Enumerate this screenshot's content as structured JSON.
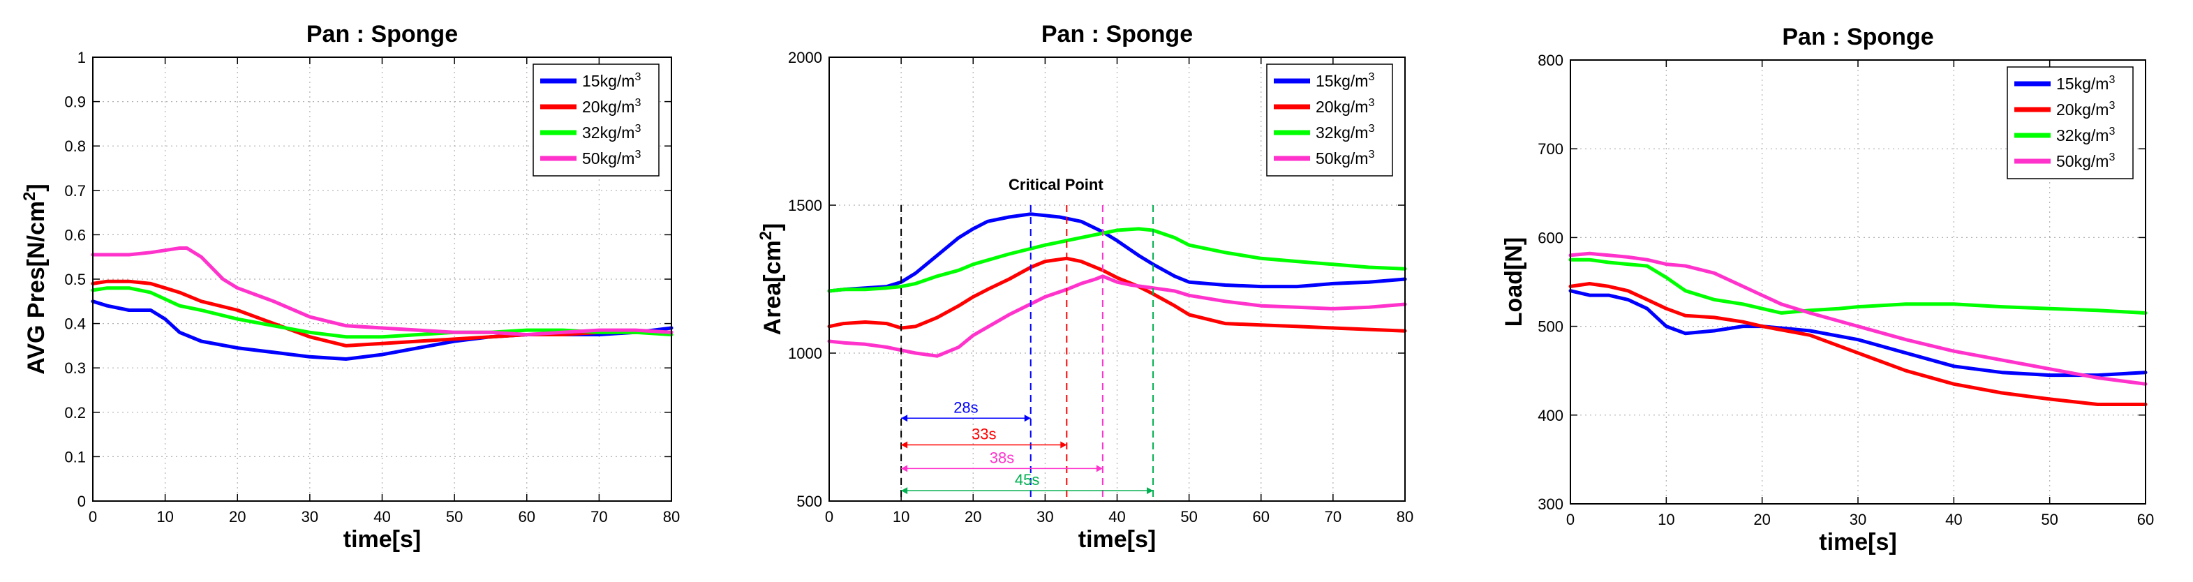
{
  "chart_data": [
    {
      "type": "line",
      "title": "Pan : Sponge",
      "xlabel": "time[s]",
      "ylabel": "AVG Pres[N/cm²]",
      "xlim": [
        0,
        80
      ],
      "ylim": [
        0,
        1
      ],
      "xticks": [
        0,
        10,
        20,
        30,
        40,
        50,
        60,
        70,
        80
      ],
      "yticks": [
        0,
        0.1,
        0.2,
        0.3,
        0.4,
        0.5,
        0.6,
        0.7,
        0.8,
        0.9,
        1
      ],
      "ytick_labels": [
        "0",
        "0.1",
        "0.2",
        "0.3",
        "0.4",
        "0.5",
        "0.6",
        "0.7",
        "0.8",
        "0.9",
        "1"
      ],
      "grid": true,
      "legend_position": "top-right",
      "series": [
        {
          "name": "15kg/m³",
          "color": "#0000ff",
          "x": [
            0,
            2,
            5,
            8,
            10,
            12,
            15,
            20,
            25,
            30,
            35,
            40,
            45,
            50,
            55,
            60,
            65,
            70,
            75,
            80
          ],
          "y": [
            0.45,
            0.44,
            0.43,
            0.43,
            0.41,
            0.38,
            0.36,
            0.345,
            0.335,
            0.325,
            0.32,
            0.33,
            0.345,
            0.36,
            0.37,
            0.375,
            0.375,
            0.375,
            0.38,
            0.39
          ]
        },
        {
          "name": "20kg/m³",
          "color": "#ff0000",
          "x": [
            0,
            2,
            5,
            8,
            10,
            12,
            15,
            20,
            25,
            30,
            35,
            40,
            45,
            50,
            55,
            60,
            65,
            70,
            75,
            80
          ],
          "y": [
            0.49,
            0.495,
            0.495,
            0.49,
            0.48,
            0.47,
            0.45,
            0.43,
            0.4,
            0.37,
            0.35,
            0.355,
            0.36,
            0.365,
            0.37,
            0.375,
            0.375,
            0.38,
            0.38,
            0.38
          ]
        },
        {
          "name": "32kg/m³",
          "color": "#00ff00",
          "x": [
            0,
            2,
            5,
            8,
            10,
            12,
            15,
            20,
            25,
            30,
            35,
            40,
            45,
            50,
            55,
            60,
            65,
            70,
            75,
            80
          ],
          "y": [
            0.475,
            0.48,
            0.48,
            0.47,
            0.455,
            0.44,
            0.43,
            0.41,
            0.395,
            0.38,
            0.37,
            0.37,
            0.375,
            0.38,
            0.38,
            0.385,
            0.385,
            0.38,
            0.38,
            0.375
          ]
        },
        {
          "name": "50kg/m³",
          "color": "#ff33cc",
          "x": [
            0,
            2,
            5,
            8,
            10,
            12,
            13,
            15,
            18,
            20,
            25,
            30,
            35,
            40,
            45,
            50,
            55,
            60,
            65,
            70,
            75,
            80
          ],
          "y": [
            0.555,
            0.555,
            0.555,
            0.56,
            0.565,
            0.57,
            0.57,
            0.55,
            0.5,
            0.48,
            0.45,
            0.415,
            0.395,
            0.39,
            0.385,
            0.38,
            0.38,
            0.375,
            0.38,
            0.385,
            0.385,
            0.38
          ]
        }
      ]
    },
    {
      "type": "line",
      "title": "Pan : Sponge",
      "xlabel": "time[s]",
      "ylabel": "Area[cm²]",
      "xlim": [
        0,
        80
      ],
      "ylim": [
        500,
        2000
      ],
      "xticks": [
        0,
        10,
        20,
        30,
        40,
        50,
        60,
        70,
        80
      ],
      "yticks": [
        500,
        1000,
        1500,
        2000
      ],
      "ytick_labels": [
        "500",
        "1000",
        "1500",
        "2000"
      ],
      "grid": true,
      "legend_position": "top-right",
      "series": [
        {
          "name": "15kg/m³",
          "color": "#0000ff",
          "x": [
            0,
            2,
            5,
            8,
            10,
            12,
            15,
            18,
            20,
            22,
            25,
            28,
            30,
            32,
            35,
            38,
            40,
            43,
            45,
            48,
            50,
            55,
            60,
            65,
            70,
            75,
            80
          ],
          "y": [
            1210,
            1215,
            1220,
            1225,
            1240,
            1270,
            1330,
            1390,
            1420,
            1445,
            1460,
            1470,
            1465,
            1460,
            1445,
            1410,
            1380,
            1330,
            1300,
            1260,
            1240,
            1230,
            1225,
            1225,
            1235,
            1240,
            1250
          ]
        },
        {
          "name": "20kg/m³",
          "color": "#ff0000",
          "x": [
            0,
            2,
            5,
            8,
            10,
            12,
            15,
            18,
            20,
            22,
            25,
            28,
            30,
            33,
            35,
            38,
            40,
            43,
            45,
            48,
            50,
            55,
            60,
            65,
            70,
            75,
            80
          ],
          "y": [
            1090,
            1100,
            1105,
            1100,
            1085,
            1090,
            1120,
            1160,
            1190,
            1215,
            1250,
            1290,
            1310,
            1320,
            1310,
            1280,
            1255,
            1225,
            1200,
            1160,
            1130,
            1100,
            1095,
            1090,
            1085,
            1080,
            1075
          ]
        },
        {
          "name": "32kg/m³",
          "color": "#00ff00",
          "x": [
            0,
            2,
            5,
            8,
            10,
            12,
            15,
            18,
            20,
            25,
            30,
            35,
            40,
            43,
            45,
            48,
            50,
            55,
            60,
            65,
            70,
            75,
            80
          ],
          "y": [
            1210,
            1215,
            1215,
            1220,
            1225,
            1235,
            1260,
            1280,
            1300,
            1335,
            1365,
            1390,
            1415,
            1420,
            1415,
            1390,
            1365,
            1340,
            1320,
            1310,
            1300,
            1290,
            1285
          ]
        },
        {
          "name": "50kg/m³",
          "color": "#ff33cc",
          "x": [
            0,
            2,
            5,
            8,
            10,
            12,
            15,
            18,
            20,
            25,
            30,
            33,
            35,
            37,
            38,
            40,
            42,
            45,
            48,
            50,
            55,
            60,
            65,
            70,
            75,
            80
          ],
          "y": [
            1040,
            1035,
            1030,
            1020,
            1010,
            1000,
            990,
            1020,
            1060,
            1130,
            1190,
            1215,
            1235,
            1250,
            1260,
            1240,
            1230,
            1220,
            1210,
            1195,
            1175,
            1160,
            1155,
            1150,
            1155,
            1165
          ]
        }
      ],
      "annotations": {
        "critical_point_label": "Critical Point",
        "start_time": 10,
        "critical_lines": [
          {
            "time": 28,
            "color": "#0000ff"
          },
          {
            "time": 33,
            "color": "#ff0000"
          },
          {
            "time": 38,
            "color": "#ff33cc"
          },
          {
            "time": 45,
            "color": "#00b050"
          }
        ],
        "intervals": [
          {
            "label": "28s",
            "end": 28,
            "color": "#0000ff",
            "y": 780
          },
          {
            "label": "33s",
            "end": 33,
            "color": "#ff0000",
            "y": 690
          },
          {
            "label": "38s",
            "end": 38,
            "color": "#ff33cc",
            "y": 610
          },
          {
            "label": "45s",
            "end": 45,
            "color": "#00b050",
            "y": 535
          }
        ]
      }
    },
    {
      "type": "line",
      "title": "Pan : Sponge",
      "xlabel": "time[s]",
      "ylabel": "Load[N]",
      "xlim": [
        0,
        60
      ],
      "ylim": [
        300,
        800
      ],
      "xticks": [
        0,
        10,
        20,
        30,
        40,
        50,
        60
      ],
      "yticks": [
        300,
        400,
        500,
        600,
        700,
        800
      ],
      "ytick_labels": [
        "300",
        "400",
        "500",
        "600",
        "700",
        "800"
      ],
      "grid": true,
      "legend_position": "top-right",
      "series": [
        {
          "name": "15kg/m³",
          "color": "#0000ff",
          "x": [
            0,
            2,
            4,
            6,
            8,
            9,
            10,
            12,
            15,
            18,
            20,
            25,
            30,
            35,
            40,
            45,
            50,
            55,
            60
          ],
          "y": [
            540,
            535,
            535,
            530,
            520,
            510,
            500,
            492,
            495,
            500,
            500,
            495,
            485,
            470,
            455,
            448,
            445,
            445,
            448
          ]
        },
        {
          "name": "20kg/m³",
          "color": "#ff0000",
          "x": [
            0,
            2,
            4,
            6,
            8,
            10,
            12,
            15,
            18,
            20,
            25,
            30,
            35,
            40,
            45,
            50,
            55,
            60
          ],
          "y": [
            545,
            548,
            545,
            540,
            530,
            520,
            512,
            510,
            505,
            500,
            490,
            470,
            450,
            435,
            425,
            418,
            412,
            412
          ]
        },
        {
          "name": "32kg/m³",
          "color": "#00ff00",
          "x": [
            0,
            2,
            4,
            6,
            8,
            10,
            12,
            15,
            18,
            20,
            22,
            25,
            28,
            30,
            35,
            40,
            45,
            50,
            55,
            60
          ],
          "y": [
            575,
            575,
            572,
            570,
            568,
            555,
            540,
            530,
            525,
            520,
            515,
            518,
            520,
            522,
            525,
            525,
            522,
            520,
            518,
            515
          ]
        },
        {
          "name": "50kg/m³",
          "color": "#ff33cc",
          "x": [
            0,
            2,
            4,
            6,
            8,
            10,
            12,
            15,
            18,
            20,
            22,
            25,
            30,
            35,
            40,
            45,
            50,
            55,
            60
          ],
          "y": [
            580,
            582,
            580,
            578,
            575,
            570,
            568,
            560,
            545,
            535,
            525,
            515,
            500,
            485,
            472,
            462,
            452,
            442,
            435
          ]
        }
      ]
    }
  ]
}
